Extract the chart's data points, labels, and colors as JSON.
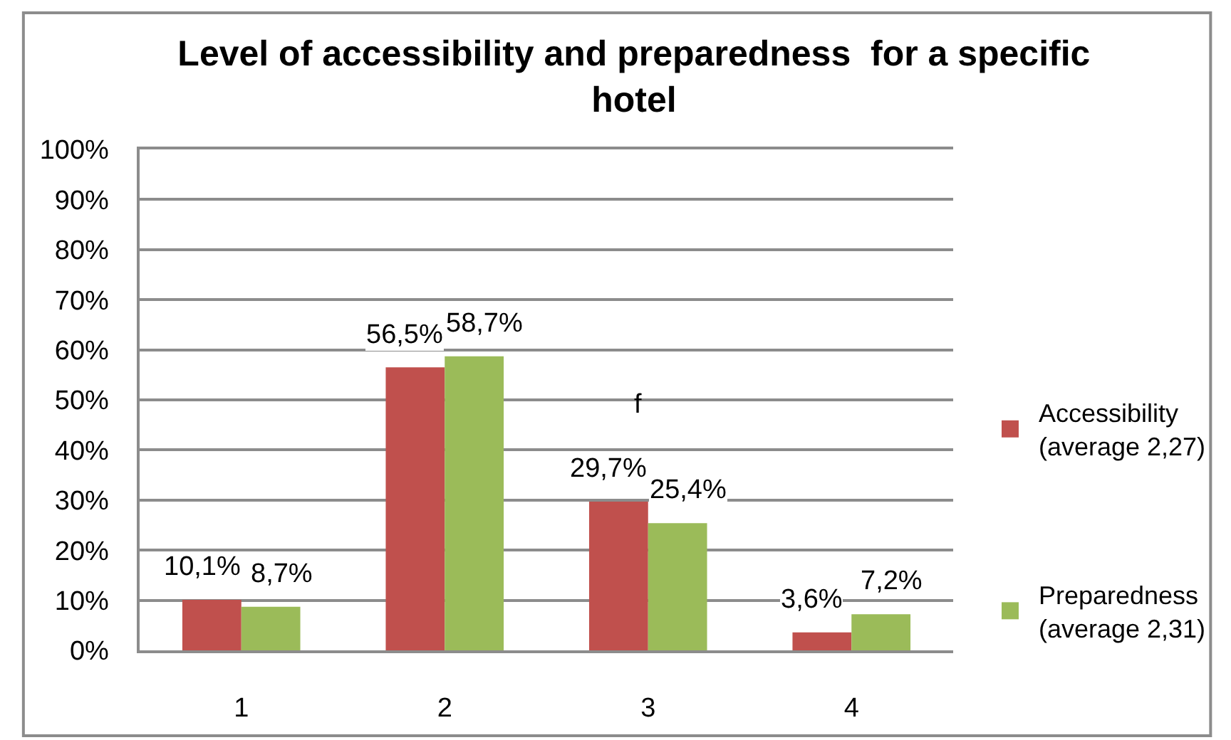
{
  "chart_data": {
    "type": "bar",
    "title": "Level of accessibility and preparedness  for a specific hotel",
    "categories": [
      "1",
      "2",
      "3",
      "4"
    ],
    "series": [
      {
        "name": "Accessibility (average 2,27)",
        "color": "#c0504d",
        "values": [
          10.1,
          56.5,
          29.7,
          3.6
        ],
        "value_labels": [
          "10,1%",
          "56,5%",
          "29,7%",
          "3,6%"
        ]
      },
      {
        "name": "Preparedness (average 2,31)",
        "color": "#9bbb59",
        "values": [
          8.7,
          58.7,
          25.4,
          7.2
        ],
        "value_labels": [
          "8,7%",
          "58,7%",
          "25,4%",
          "7,2%"
        ]
      }
    ],
    "ylim": [
      0,
      100
    ],
    "yticks": [
      {
        "value": 0,
        "label": "0%"
      },
      {
        "value": 10,
        "label": "10%"
      },
      {
        "value": 20,
        "label": "20%"
      },
      {
        "value": 30,
        "label": "30%"
      },
      {
        "value": 40,
        "label": "40%"
      },
      {
        "value": 50,
        "label": "50%"
      },
      {
        "value": 60,
        "label": "60%"
      },
      {
        "value": 70,
        "label": "70%"
      },
      {
        "value": 80,
        "label": "80%"
      },
      {
        "value": 90,
        "label": "90%"
      },
      {
        "value": 100,
        "label": "100%"
      }
    ],
    "grid": "y",
    "legend": "right",
    "annotations": [
      "f"
    ]
  }
}
